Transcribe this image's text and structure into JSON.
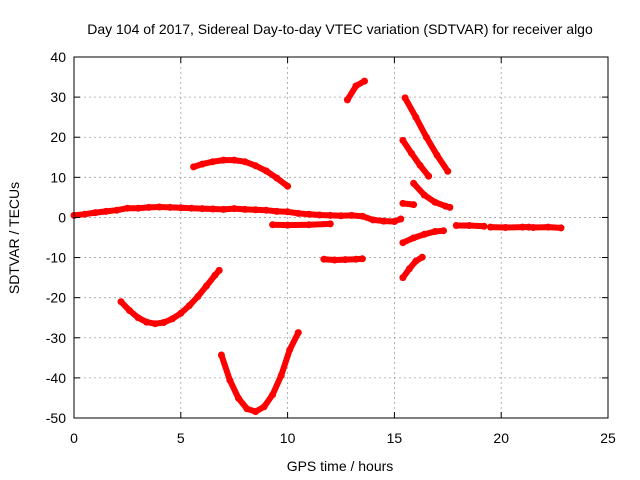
{
  "chart_data": {
    "type": "scatter",
    "title": "Day 104 of 2017, Sidereal Day-to-day VTEC variation (SDTVAR) for receiver algo",
    "xlabel": "GPS time / hours",
    "ylabel": "SDTVAR / TECUs",
    "xlim": [
      0,
      25
    ],
    "ylim": [
      -50,
      40
    ],
    "xticks": [
      0,
      5,
      10,
      15,
      20,
      25
    ],
    "yticks": [
      -50,
      -40,
      -30,
      -20,
      -10,
      0,
      10,
      20,
      30,
      40
    ],
    "grid": true,
    "color": "#ff0000",
    "series": [
      {
        "x": [
          0,
          0.5,
          1,
          1.5,
          2,
          2.5,
          3,
          3.5,
          4,
          4.5,
          5,
          5.5,
          6,
          6.5,
          7,
          7.5,
          8,
          8.5,
          9,
          9.5,
          10,
          10.5,
          11,
          11.5,
          12,
          12.5,
          13,
          13.5,
          14,
          14.5,
          15,
          15.3
        ],
        "y": [
          0.5,
          0.8,
          1.2,
          1.5,
          1.8,
          2.3,
          2.3,
          2.5,
          2.6,
          2.5,
          2.4,
          2.3,
          2.2,
          2.1,
          2.0,
          2.2,
          2.0,
          1.9,
          1.8,
          1.5,
          1.4,
          1.0,
          0.8,
          0.6,
          0.5,
          0.4,
          0.5,
          0.3,
          -0.6,
          -0.9,
          -1.0,
          -0.4
        ]
      },
      {
        "x": [
          5.6,
          6,
          6.5,
          7,
          7.5,
          8,
          8.5,
          9,
          9.5,
          10
        ],
        "y": [
          12.6,
          13.3,
          13.9,
          14.3,
          14.3,
          13.9,
          12.9,
          11.6,
          9.8,
          7.8
        ]
      },
      {
        "x": [
          2.2,
          2.6,
          3,
          3.4,
          3.8,
          4.2,
          4.6,
          5,
          5.4,
          5.8,
          6.2,
          6.6,
          6.8
        ],
        "y": [
          -21,
          -23.2,
          -25,
          -26.1,
          -26.5,
          -26.2,
          -25.3,
          -23.9,
          -22,
          -19.7,
          -17.1,
          -14.4,
          -13.2
        ]
      },
      {
        "x": [
          6.9,
          7.3,
          7.7,
          8.1,
          8.5,
          8.9,
          9.3,
          9.7,
          10.1,
          10.5
        ],
        "y": [
          -34.3,
          -40.6,
          -45.1,
          -47.7,
          -48.4,
          -47.2,
          -44.2,
          -39.4,
          -33,
          -28.7
        ]
      },
      {
        "x": [
          9.3,
          10,
          11,
          12
        ],
        "y": [
          -1.8,
          -1.9,
          -1.8,
          -1.6
        ]
      },
      {
        "x": [
          11.7,
          12.2,
          12.7,
          13.2,
          13.5
        ],
        "y": [
          -10.4,
          -10.6,
          -10.5,
          -10.4,
          -10.3
        ]
      },
      {
        "x": [
          12.8,
          13.2,
          13.6
        ],
        "y": [
          29.3,
          32.8,
          34.0
        ]
      },
      {
        "x": [
          15.5,
          16,
          16.5,
          17,
          17.5
        ],
        "y": [
          29.8,
          25,
          20,
          15.5,
          11.5
        ]
      },
      {
        "x": [
          15.4,
          15.8,
          16.2,
          16.6
        ],
        "y": [
          19.2,
          16,
          13,
          10.3
        ]
      },
      {
        "x": [
          15.4,
          15.9
        ],
        "y": [
          3.5,
          3.2
        ]
      },
      {
        "x": [
          15.9,
          16.4,
          16.9,
          17.4,
          17.6
        ],
        "y": [
          8.5,
          5.6,
          3.8,
          2.8,
          2.5
        ]
      },
      {
        "x": [
          15.4,
          15.9,
          16.4,
          16.9,
          17.3
        ],
        "y": [
          -6.3,
          -5.1,
          -4.2,
          -3.5,
          -3.3
        ]
      },
      {
        "x": [
          15.4,
          15.7,
          16.0,
          16.3
        ],
        "y": [
          -15,
          -12.8,
          -10.9,
          -9.9
        ]
      },
      {
        "x": [
          17.9,
          18.5,
          19.2
        ],
        "y": [
          -2.0,
          -2.0,
          -2.2
        ]
      },
      {
        "x": [
          19.5,
          20.2,
          21,
          21.3
        ],
        "y": [
          -2.4,
          -2.5,
          -2.4,
          -2.4
        ]
      },
      {
        "x": [
          21.5,
          22.2,
          22.8
        ],
        "y": [
          -2.5,
          -2.4,
          -2.6
        ]
      }
    ]
  }
}
